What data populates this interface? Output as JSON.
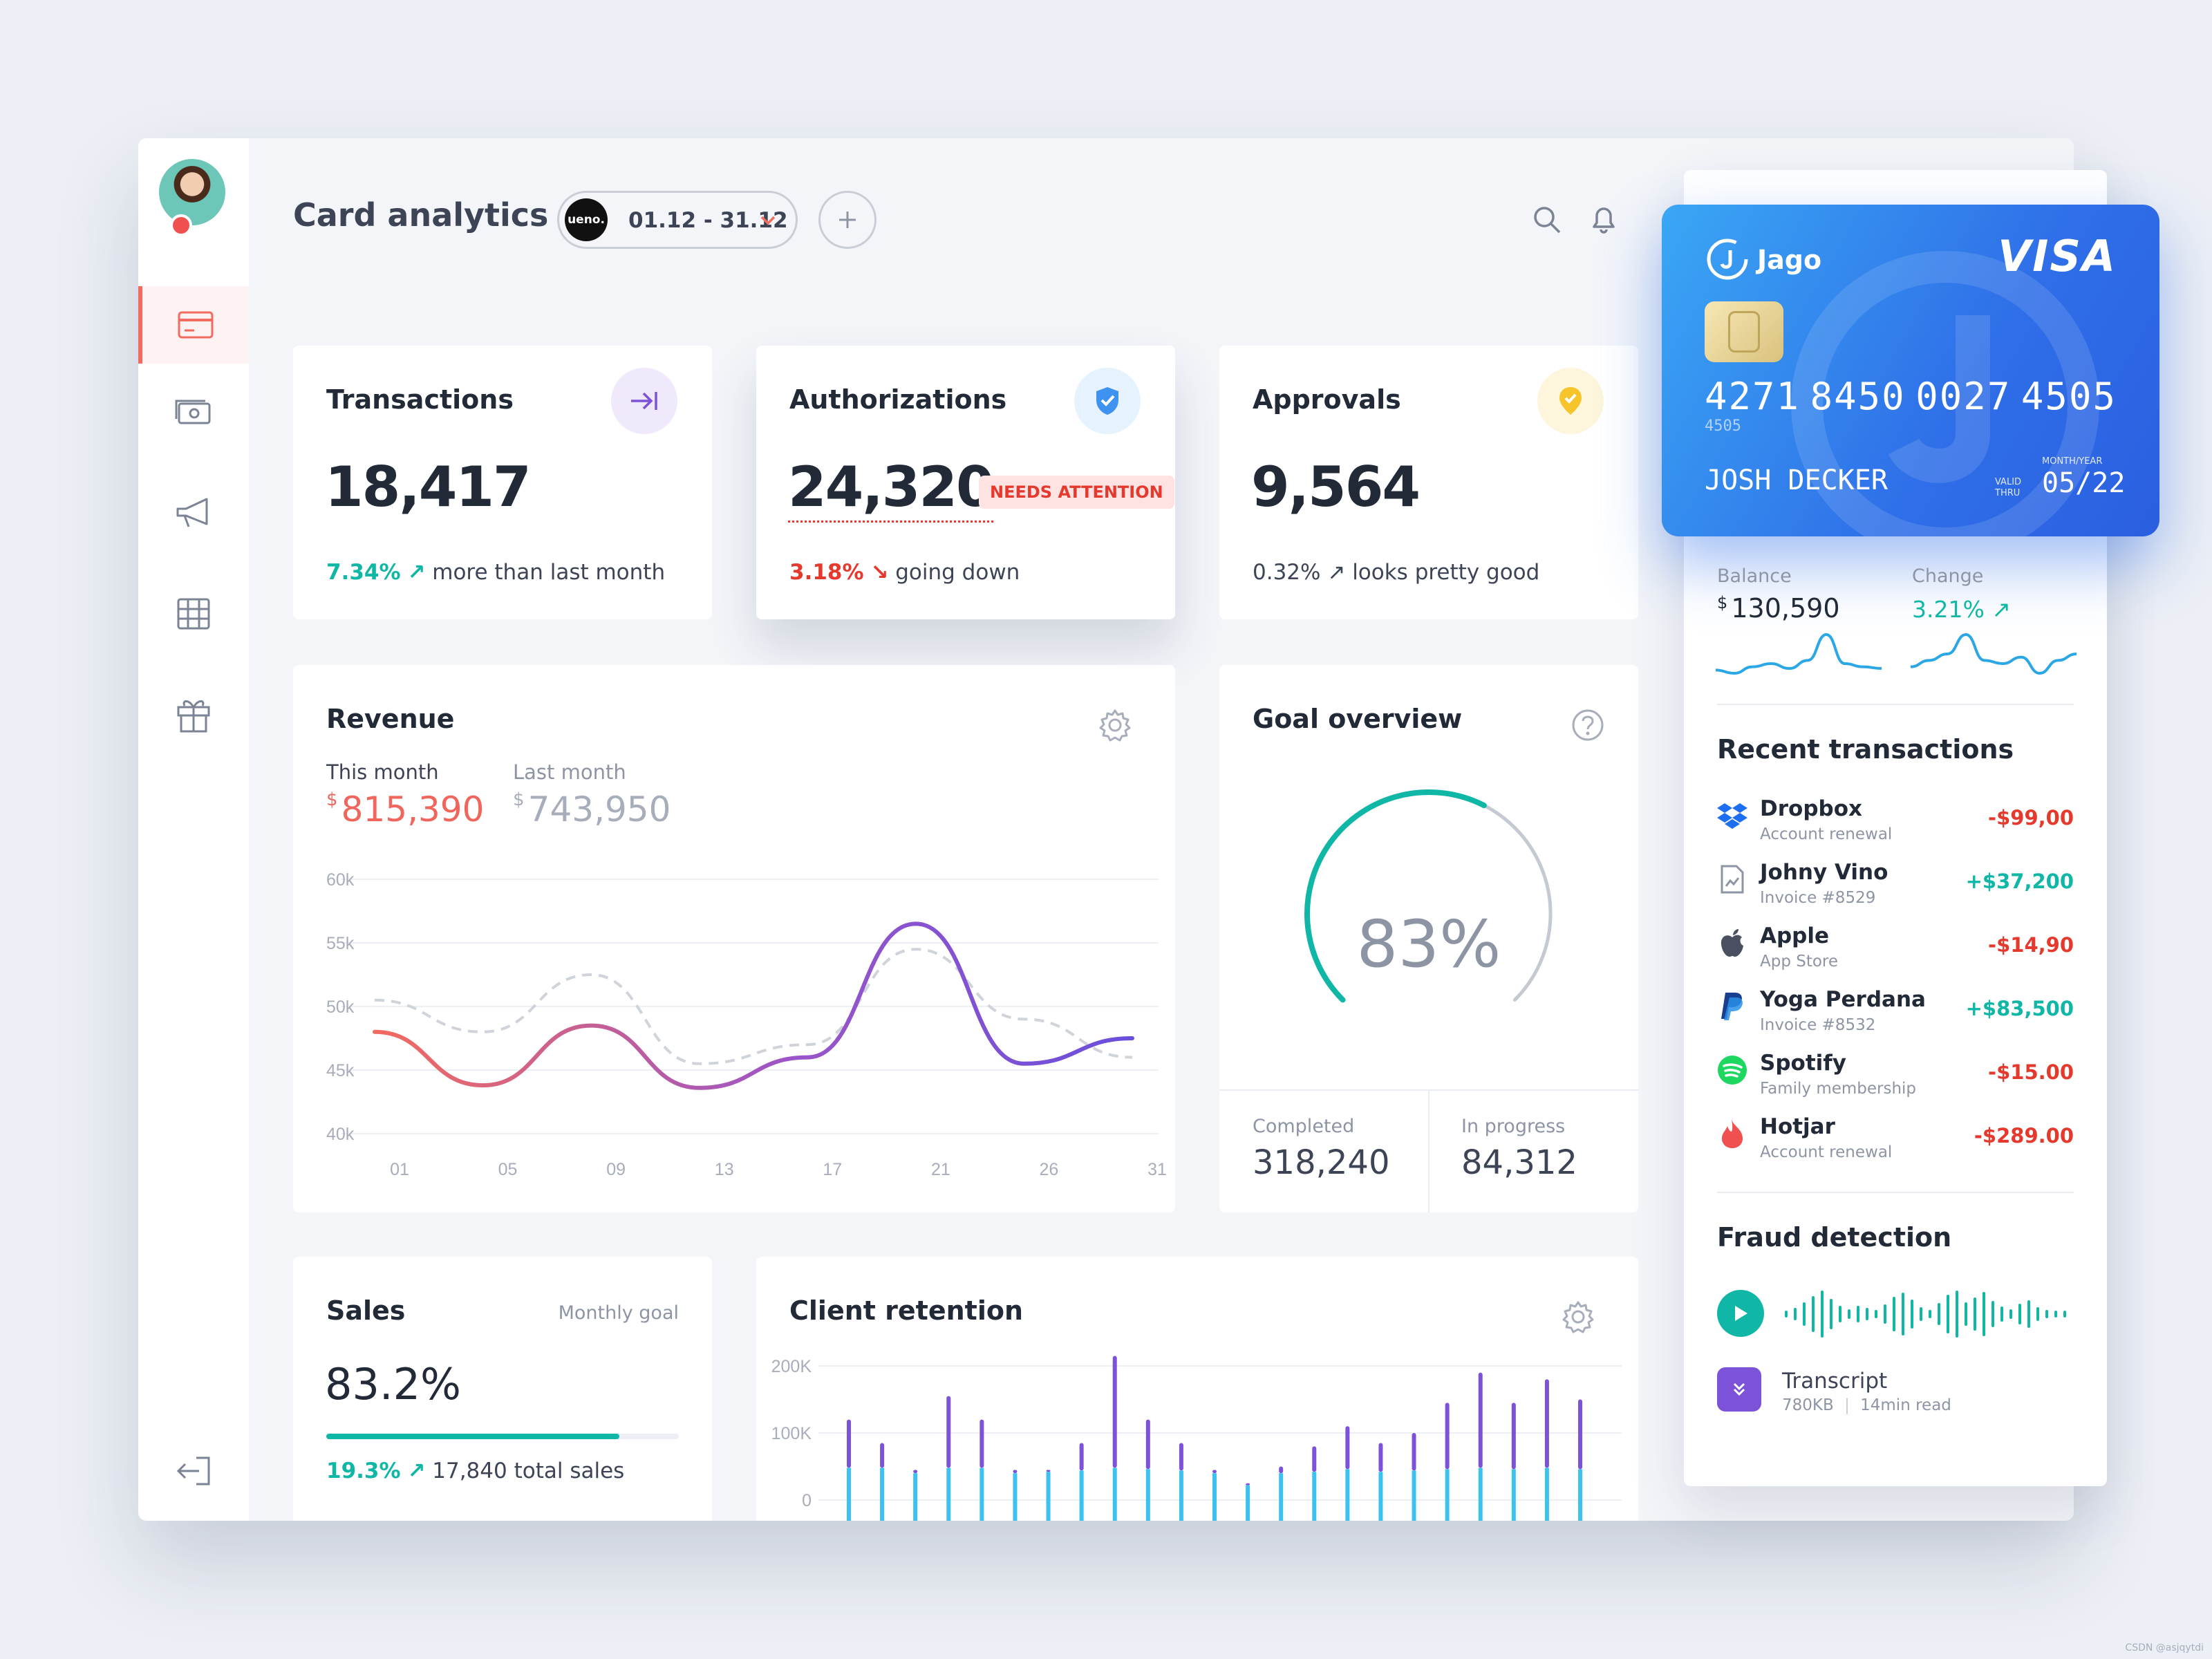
{
  "header": {
    "title": "Card analytics",
    "brand_logo": "ueno.",
    "date_range": "01.12 - 31.12"
  },
  "icons": {
    "search": "search-icon",
    "bell": "bell-icon",
    "add": "plus-icon"
  },
  "sidebar": {
    "items": [
      {
        "name": "card",
        "active": true
      },
      {
        "name": "money"
      },
      {
        "name": "megaphone"
      },
      {
        "name": "table"
      },
      {
        "name": "gift"
      }
    ]
  },
  "stats": {
    "transactions": {
      "label": "Transactions",
      "value": "18,417",
      "change": "7.34%",
      "arrow": "↗",
      "note": "more than last month"
    },
    "authorizations": {
      "label": "Authorizations",
      "value": "24,320",
      "badge": "NEEDS ATTENTION",
      "change": "3.18%",
      "arrow": "↘",
      "note": "going down"
    },
    "approvals": {
      "label": "Approvals",
      "value": "9,564",
      "change": "0.32%",
      "arrow": "↗",
      "note": "looks pretty good"
    }
  },
  "revenue": {
    "title": "Revenue",
    "this_month_label": "This month",
    "this_month_currency": "$",
    "this_month_value": "815,390",
    "last_month_label": "Last month",
    "last_month_currency": "$",
    "last_month_value": "743,950"
  },
  "goal": {
    "title": "Goal overview",
    "percent": "83%",
    "percent_value": 83,
    "completed_label": "Completed",
    "completed_value": "318,240",
    "progress_label": "In progress",
    "progress_value": "84,312"
  },
  "sales": {
    "title": "Sales",
    "goal_label": "Monthly goal",
    "value": "83.2%",
    "progress": 0.832,
    "change": "19.3%",
    "arrow": "↗",
    "note": "17,840 total sales"
  },
  "retention": {
    "title": "Client retention"
  },
  "card": {
    "brand": "Jago",
    "network": "VISA",
    "number": [
      "4271",
      "8450",
      "0027",
      "4505"
    ],
    "small_number": "4505",
    "holder": "JOSH DECKER",
    "valid_label_1": "VALID",
    "valid_label_2": "THRU",
    "month_year_label": "MONTH/YEAR",
    "expiry": "05/22"
  },
  "balance": {
    "label": "Balance",
    "currency": "$",
    "value": "130,590",
    "change_label": "Change",
    "change_value": "3.21%",
    "arrow": "↗"
  },
  "recent": {
    "title": "Recent transactions",
    "items": [
      {
        "name": "Dropbox",
        "sub": "Account renewal",
        "amount": "-$99,00",
        "positive": false,
        "icon": "dropbox-icon"
      },
      {
        "name": "Johny Vino",
        "sub": "Invoice #8529",
        "amount": "+$37,200",
        "positive": true,
        "icon": "invoice-icon"
      },
      {
        "name": "Apple",
        "sub": "App Store",
        "amount": "-$14,90",
        "positive": false,
        "icon": "apple-icon"
      },
      {
        "name": "Yoga Perdana",
        "sub": "Invoice #8532",
        "amount": "+$83,500",
        "positive": true,
        "icon": "paypal-icon"
      },
      {
        "name": "Spotify",
        "sub": "Family membership",
        "amount": "-$15.00",
        "positive": false,
        "icon": "spotify-icon"
      },
      {
        "name": "Hotjar",
        "sub": "Account renewal",
        "amount": "-$289.00",
        "positive": false,
        "icon": "hotjar-icon"
      }
    ]
  },
  "fraud": {
    "title": "Fraud detection",
    "transcript_label": "Transcript",
    "transcript_size": "780KB",
    "transcript_sep": "|",
    "transcript_read": "14min read"
  },
  "watermark": "CSDN @asjqytdi",
  "colors": {
    "accent": "#f26b5f",
    "teal": "#10b7a6",
    "red": "#e5392d",
    "purple": "#7c52d8",
    "blue": "#2f6fe8"
  },
  "chart_data": [
    {
      "type": "line",
      "title": "Revenue",
      "x": [
        "01",
        "05",
        "09",
        "13",
        "17",
        "21",
        "26",
        "31"
      ],
      "ylim": [
        40000,
        60000
      ],
      "yticks": [
        "60k",
        "55k",
        "50k",
        "45k",
        "40k"
      ],
      "series": [
        {
          "name": "This month",
          "values": [
            48000,
            43800,
            48500,
            43600,
            46000,
            56500,
            45500,
            47500
          ]
        },
        {
          "name": "Last month",
          "values": [
            50500,
            48000,
            52500,
            45500,
            47000,
            54500,
            49000,
            46000
          ]
        }
      ]
    },
    {
      "type": "bar",
      "title": "Client retention",
      "yticks": [
        "200K",
        "100K",
        "0"
      ],
      "ylim": [
        0,
        200000
      ],
      "series": [
        {
          "name": "total",
          "values": [
            120000,
            85000,
            45000,
            155000,
            120000,
            45000,
            45000,
            85000,
            215000,
            120000,
            85000,
            45000,
            25000,
            50000,
            80000,
            110000,
            85000,
            100000,
            145000,
            190000,
            145000,
            180000,
            150000
          ]
        },
        {
          "name": "base",
          "values": [
            48000,
            48000,
            40000,
            48000,
            48000,
            40000,
            42000,
            44000,
            48000,
            46000,
            44000,
            40000,
            22000,
            40000,
            42000,
            46000,
            42000,
            44000,
            46000,
            48000,
            46000,
            48000,
            46000
          ]
        }
      ]
    },
    {
      "type": "line",
      "title": "Balance sparkline",
      "values": [
        8,
        6,
        10,
        12,
        9,
        14,
        30,
        12,
        10,
        9
      ]
    },
    {
      "type": "line",
      "title": "Change sparkline",
      "values": [
        10,
        12,
        14,
        20,
        12,
        11,
        13,
        8,
        12,
        14
      ]
    }
  ]
}
